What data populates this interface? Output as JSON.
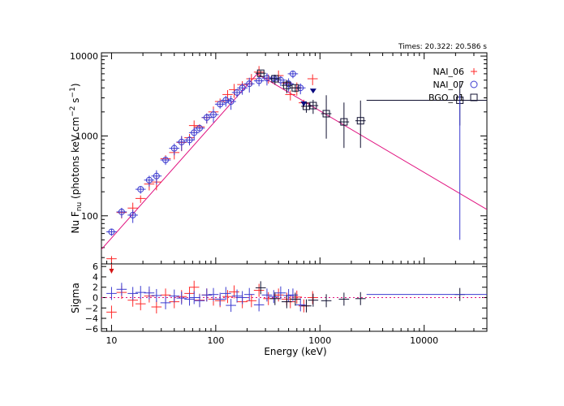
{
  "chart_data": {
    "type": "scatter",
    "times_label": "Times: 20.322: 20.586 s",
    "xlabel": "Energy (keV)",
    "xlim": [
      8,
      40000
    ],
    "xscale": "log",
    "x_ticks": [
      10,
      100,
      1000,
      10000
    ],
    "x_tick_labels": [
      "10",
      "100",
      "1000",
      "10000"
    ],
    "top_panel": {
      "ylabel_main": "Nu F",
      "ylabel_sub": "nu",
      "ylabel_rest": " (photons keV cm",
      "ylabel_exp1": "−2",
      "ylabel_mid": " s",
      "ylabel_exp2": "−1",
      "ylabel_end": ")",
      "ylim": [
        25,
        11000
      ],
      "yscale": "log",
      "y_ticks": [
        100,
        1000,
        10000
      ],
      "y_tick_labels": [
        "100",
        "1000",
        "10000"
      ],
      "model_curve": {
        "color": "#e0117f",
        "points": [
          [
            8,
            38
          ],
          [
            250,
            6000
          ],
          [
            40000,
            120
          ]
        ]
      },
      "series": [
        {
          "name": "NAI_06",
          "marker": "plus",
          "color": "#ff2a2a",
          "points": [
            [
              10,
              29
            ],
            [
              12.5,
              110
            ],
            [
              16,
              125
            ],
            [
              19,
              165
            ],
            [
              23,
              250
            ],
            [
              27,
              265
            ],
            [
              33,
              520
            ],
            [
              40,
              620
            ],
            [
              47,
              830
            ],
            [
              56,
              950
            ],
            [
              62,
              1350
            ],
            [
              70,
              1300
            ],
            [
              82,
              1700
            ],
            [
              95,
              2000
            ],
            [
              110,
              2700
            ],
            [
              130,
              3300
            ],
            [
              150,
              3800
            ],
            [
              180,
              4400
            ],
            [
              220,
              5200
            ],
            [
              260,
              6300
            ],
            [
              320,
              5300
            ],
            [
              400,
              5700
            ],
            [
              480,
              4600
            ],
            [
              520,
              3300
            ],
            [
              600,
              4000
            ],
            [
              700,
              2600
            ],
            [
              850,
              5200
            ]
          ]
        },
        {
          "name": "NAI_07",
          "marker": "circle",
          "color": "#3b3bd0",
          "points": [
            [
              10,
              63
            ],
            [
              12.5,
              112
            ],
            [
              16,
              102
            ],
            [
              19,
              215
            ],
            [
              23,
              280
            ],
            [
              27,
              315
            ],
            [
              33,
              500
            ],
            [
              40,
              700
            ],
            [
              47,
              840
            ],
            [
              56,
              890
            ],
            [
              62,
              1100
            ],
            [
              70,
              1250
            ],
            [
              82,
              1700
            ],
            [
              95,
              1850
            ],
            [
              110,
              2500
            ],
            [
              125,
              2800
            ],
            [
              140,
              2700
            ],
            [
              160,
              3500
            ],
            [
              180,
              4000
            ],
            [
              210,
              4500
            ],
            [
              260,
              4900
            ],
            [
              310,
              5300
            ],
            [
              360,
              5300
            ],
            [
              420,
              5000
            ],
            [
              500,
              4500
            ],
            [
              550,
              6000
            ],
            [
              650,
              4000
            ]
          ]
        },
        {
          "name": "BGO_01",
          "marker": "square",
          "color": "#101030",
          "points": [
            [
              270,
              6100
            ],
            [
              370,
              5200
            ],
            [
              480,
              4300
            ],
            [
              580,
              4000
            ],
            [
              740,
              2350
            ],
            [
              860,
              2400
            ],
            [
              1150,
              1900
            ],
            [
              1700,
              1500
            ],
            [
              2450,
              1550
            ],
            [
              22000,
              2800
            ]
          ]
        }
      ],
      "upper_limits": [
        {
          "x": 700,
          "y": 2350,
          "color": "#0a0a80"
        },
        {
          "x": 860,
          "y": 3400,
          "color": "#0a0a80"
        }
      ],
      "legend": {
        "placement": "top-right"
      }
    },
    "bottom_panel": {
      "ylabel": "Sigma",
      "ylim": [
        -6.5,
        6.5
      ],
      "y_ticks": [
        -6,
        -4,
        -2,
        0,
        2,
        4,
        6
      ],
      "y_tick_labels": [
        "−6",
        "−4",
        "−2",
        "0",
        "2",
        "4",
        "6"
      ],
      "zero_line_color": "#e0117f",
      "series": [
        {
          "name": "NAI_06",
          "color": "#ff2a2a",
          "points": [
            [
              10,
              -2.8
            ],
            [
              12.5,
              1.0
            ],
            [
              16,
              -0.5
            ],
            [
              19,
              -1.2
            ],
            [
              23,
              0.3
            ],
            [
              27,
              -1.8
            ],
            [
              33,
              0.5
            ],
            [
              40,
              -0.8
            ],
            [
              47,
              0.2
            ],
            [
              56,
              0.8
            ],
            [
              62,
              2.0
            ],
            [
              70,
              -0.5
            ],
            [
              82,
              0.5
            ],
            [
              95,
              -0.3
            ],
            [
              110,
              -0.6
            ],
            [
              130,
              0.2
            ],
            [
              150,
              1.1
            ],
            [
              180,
              -0.8
            ],
            [
              220,
              -0.6
            ],
            [
              260,
              1.4
            ],
            [
              320,
              -0.2
            ],
            [
              400,
              0.5
            ],
            [
              480,
              -0.3
            ],
            [
              520,
              -0.8
            ],
            [
              600,
              0.1
            ],
            [
              700,
              -1.6
            ],
            [
              850,
              0.0
            ]
          ]
        },
        {
          "name": "NAI_07",
          "color": "#3b3bd0",
          "points": [
            [
              10,
              0.8
            ],
            [
              12.5,
              1.6
            ],
            [
              16,
              0.8
            ],
            [
              19,
              1.0
            ],
            [
              23,
              0.9
            ],
            [
              27,
              0.4
            ],
            [
              33,
              -1.0
            ],
            [
              40,
              0.3
            ],
            [
              47,
              -0.1
            ],
            [
              56,
              -0.3
            ],
            [
              62,
              0.0
            ],
            [
              70,
              -0.6
            ],
            [
              82,
              0.5
            ],
            [
              95,
              0.6
            ],
            [
              110,
              -0.3
            ],
            [
              125,
              0.8
            ],
            [
              140,
              -1.5
            ],
            [
              160,
              0.3
            ],
            [
              180,
              0.0
            ],
            [
              210,
              0.6
            ],
            [
              260,
              -1.4
            ],
            [
              310,
              0.5
            ],
            [
              360,
              0.2
            ],
            [
              420,
              0.9
            ],
            [
              500,
              0.4
            ],
            [
              550,
              0.5
            ],
            [
              650,
              -1.4
            ]
          ]
        },
        {
          "name": "BGO_01",
          "color": "#101030",
          "points": [
            [
              270,
              1.9
            ],
            [
              370,
              -0.2
            ],
            [
              480,
              -0.8
            ],
            [
              580,
              -0.3
            ],
            [
              740,
              -1.6
            ],
            [
              860,
              -0.5
            ],
            [
              1150,
              -0.6
            ],
            [
              1700,
              -0.3
            ],
            [
              2450,
              -0.2
            ],
            [
              22000,
              0.6
            ]
          ]
        }
      ],
      "lower_limit_marker": {
        "x": 10,
        "color": "#d41515"
      }
    }
  }
}
